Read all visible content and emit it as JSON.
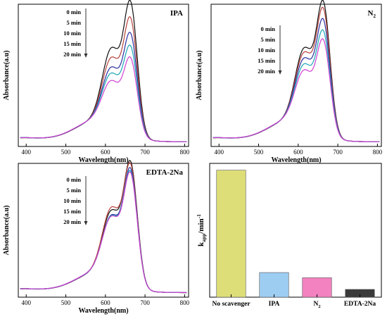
{
  "chart_data": [
    {
      "type": "line",
      "panel_label": "IPA",
      "xlabel": "Wavelength(nm)",
      "ylabel": "Absorbance(a.u)",
      "xlim": [
        380,
        810
      ],
      "x_ticks": [
        400,
        500,
        600,
        700,
        800
      ],
      "legend": [
        "0 min",
        "5 min",
        "10 min",
        "15 min",
        "20 min"
      ],
      "arrow": "down",
      "series": [
        {
          "name": "0 min",
          "color": "#111111",
          "peak": 1.0,
          "shoulder": 0.6
        },
        {
          "name": "5 min",
          "color": "#b8423c",
          "peak": 0.87,
          "shoulder": 0.52
        },
        {
          "name": "10 min",
          "color": "#2a2f9e",
          "peak": 0.75,
          "shoulder": 0.44
        },
        {
          "name": "15 min",
          "color": "#1ca6b6",
          "peak": 0.65,
          "shoulder": 0.39
        },
        {
          "name": "20 min",
          "color": "#d040d0",
          "peak": 0.56,
          "shoulder": 0.33
        }
      ]
    },
    {
      "type": "line",
      "panel_label": "N",
      "panel_label_sub": "2",
      "xlabel": "Wavelength(nm)",
      "ylabel": "Absorbance(a.u)",
      "xlim": [
        380,
        810
      ],
      "x_ticks": [
        400,
        500,
        600,
        700,
        800
      ],
      "legend": [
        "0 min",
        "5 min",
        "10 min",
        "15 min",
        "20 min"
      ],
      "arrow": "down",
      "series": [
        {
          "name": "0 min",
          "color": "#111111",
          "peak": 1.0,
          "shoulder": 0.6
        },
        {
          "name": "5 min",
          "color": "#b8423c",
          "peak": 0.94,
          "shoulder": 0.56
        },
        {
          "name": "10 min",
          "color": "#2a2f9e",
          "peak": 0.85,
          "shoulder": 0.51
        },
        {
          "name": "15 min",
          "color": "#1ca6b6",
          "peak": 0.76,
          "shoulder": 0.46
        },
        {
          "name": "20 min",
          "color": "#d040d0",
          "peak": 0.69,
          "shoulder": 0.41
        }
      ]
    },
    {
      "type": "line",
      "panel_label": "EDTA-2Na",
      "xlabel": "Wavelength(nm)",
      "ylabel": "Absorbance(a.u)",
      "xlim": [
        380,
        810
      ],
      "x_ticks": [
        400,
        500,
        600,
        700,
        800
      ],
      "legend": [
        "0 min",
        "5 min",
        "10 min",
        "15 min",
        "20 min"
      ],
      "arrow": "down",
      "series": [
        {
          "name": "0 min",
          "color": "#111111",
          "peak": 1.0,
          "shoulder": 0.55
        },
        {
          "name": "5 min",
          "color": "#b8423c",
          "peak": 0.97,
          "shoulder": 0.57
        },
        {
          "name": "10 min",
          "color": "#2a2f9e",
          "peak": 0.93,
          "shoulder": 0.5
        },
        {
          "name": "15 min",
          "color": "#1ca6b6",
          "peak": 0.9,
          "shoulder": 0.49
        },
        {
          "name": "20 min",
          "color": "#d040d0",
          "peak": 0.88,
          "shoulder": 0.48
        }
      ]
    },
    {
      "type": "bar",
      "ylabel_main": "k",
      "ylabel_sub": "app",
      "ylabel_unit": "/min",
      "ylabel_sup": "-1",
      "ylim": [
        0,
        1
      ],
      "categories": [
        {
          "label": "No scavenger",
          "sub": ""
        },
        {
          "label": "IPA",
          "sub": ""
        },
        {
          "label": "N",
          "sub": "2"
        },
        {
          "label": "EDTA-2Na",
          "sub": ""
        }
      ],
      "values": [
        0.98,
        0.19,
        0.15,
        0.06
      ],
      "colors": [
        "#dede78",
        "#9ecdf2",
        "#f382c0",
        "#3a3a3a"
      ]
    }
  ]
}
